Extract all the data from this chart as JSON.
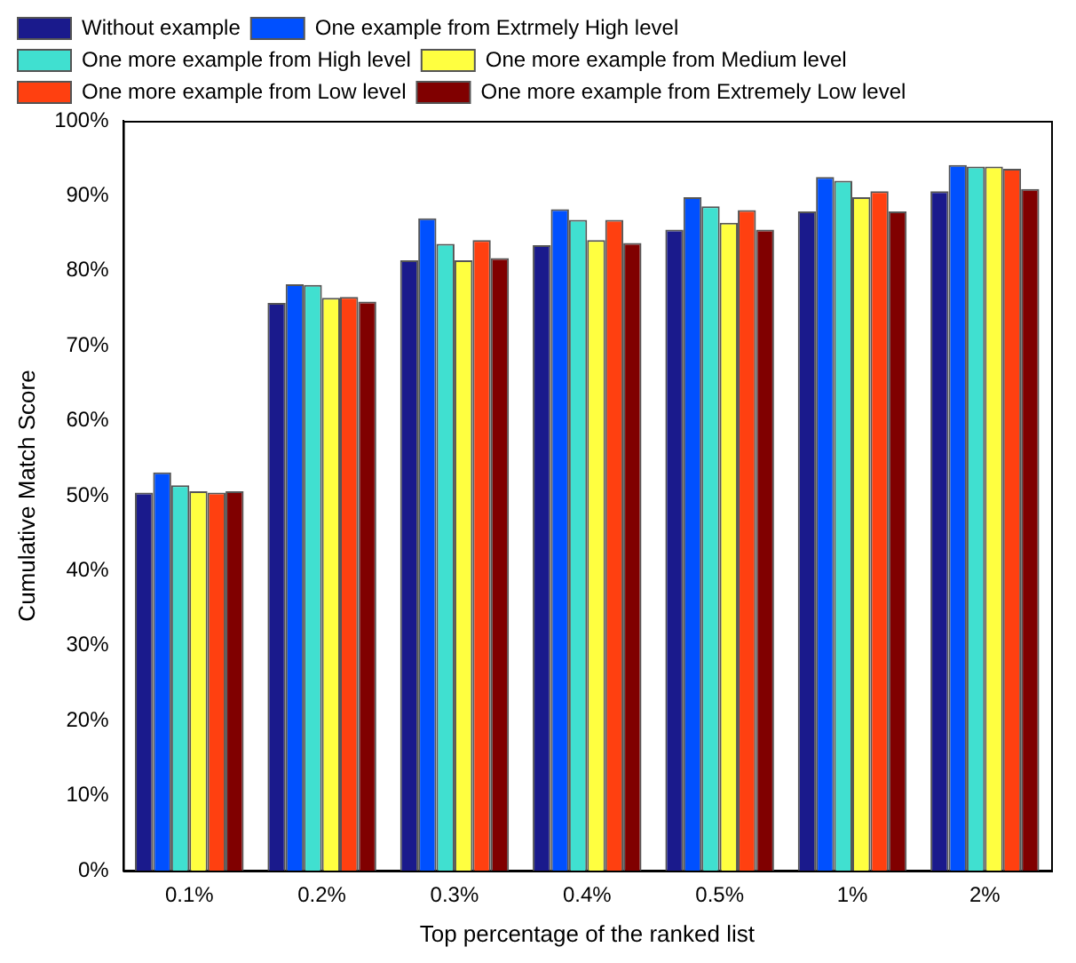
{
  "chart_data": {
    "type": "bar",
    "xlabel": "Top percentage of the ranked list",
    "ylabel": "Cumulative Match Score",
    "categories": [
      "0.1%",
      "0.2%",
      "0.3%",
      "0.4%",
      "0.5%",
      "1%",
      "2%"
    ],
    "series": [
      {
        "name": "Without example",
        "color": "#1a1a8c",
        "values": [
          50.4,
          75.7,
          81.4,
          83.4,
          85.5,
          87.9,
          90.6
        ]
      },
      {
        "name": "One example from Extrmely High level",
        "color": "#0050ff",
        "values": [
          53.1,
          78.2,
          87.0,
          88.2,
          89.8,
          92.5,
          94.1
        ]
      },
      {
        "name": "One more example from High level",
        "color": "#40e0d0",
        "values": [
          51.4,
          78.1,
          83.6,
          86.8,
          88.6,
          92.0,
          93.9
        ]
      },
      {
        "name": "One more example from Medium level",
        "color": "#ffff40",
        "values": [
          50.6,
          76.4,
          81.4,
          84.1,
          86.4,
          89.8,
          93.9
        ]
      },
      {
        "name": "One more example from Low level",
        "color": "#ff4010",
        "values": [
          50.4,
          76.5,
          84.1,
          86.8,
          88.1,
          90.6,
          93.6
        ]
      },
      {
        "name": "One more example from Extremely Low level",
        "color": "#800000",
        "values": [
          50.6,
          75.9,
          81.7,
          83.7,
          85.5,
          87.9,
          90.9
        ]
      }
    ],
    "ylim": [
      0,
      100
    ],
    "yticks": [
      {
        "value": 0,
        "label": "0%"
      },
      {
        "value": 10,
        "label": "10%"
      },
      {
        "value": 20,
        "label": "20%"
      },
      {
        "value": 30,
        "label": "30%"
      },
      {
        "value": 40,
        "label": "40%"
      },
      {
        "value": 50,
        "label": "50%"
      },
      {
        "value": 60,
        "label": "60%"
      },
      {
        "value": 70,
        "label": "70%"
      },
      {
        "value": 80,
        "label": "80%"
      },
      {
        "value": 90,
        "label": "90%"
      },
      {
        "value": 100,
        "label": "100%"
      }
    ],
    "grid": false,
    "legend": "top left"
  }
}
